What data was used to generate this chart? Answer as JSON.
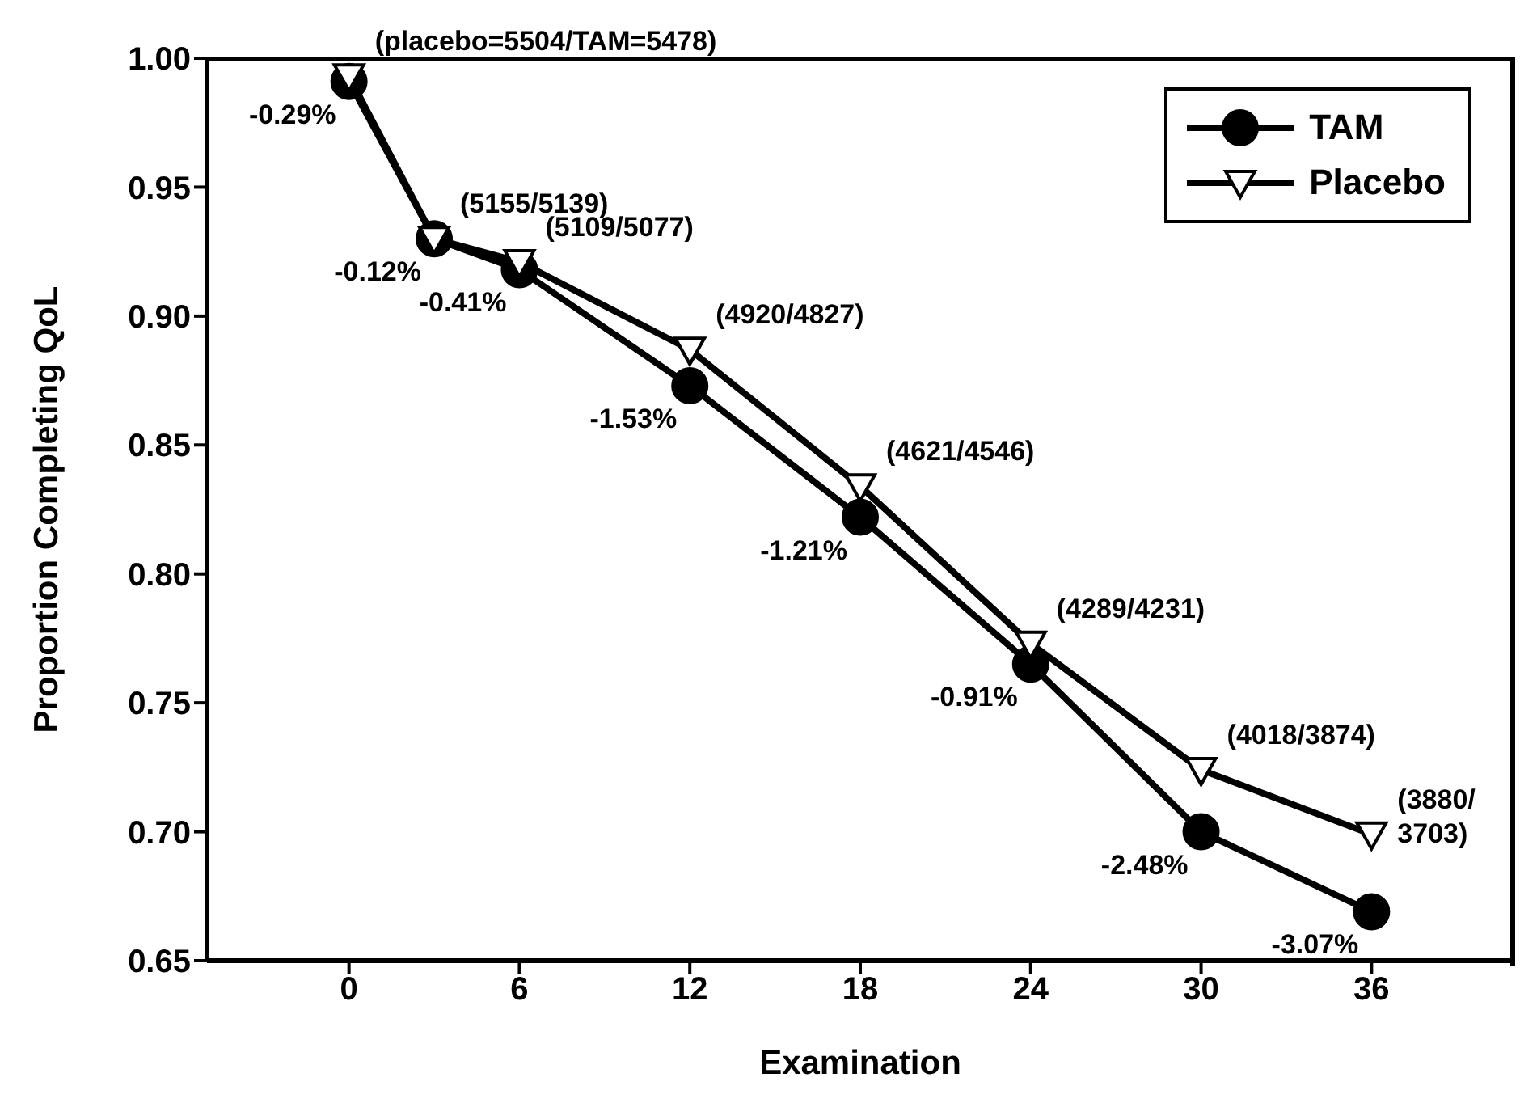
{
  "chart_data": {
    "type": "line",
    "xlabel": "Examination",
    "ylabel": "Proportion Completing QoL",
    "x": [
      0,
      3,
      6,
      12,
      18,
      24,
      30,
      36
    ],
    "series": [
      {
        "name": "TAM",
        "color": "#000000",
        "marker": "circle",
        "values": [
          0.991,
          0.93,
          0.918,
          0.873,
          0.822,
          0.765,
          0.7,
          0.669
        ]
      },
      {
        "name": "Placebo",
        "color": "#000000",
        "marker": "triangle",
        "values": [
          0.993,
          0.93,
          0.921,
          0.887,
          0.834,
          0.773,
          0.724,
          0.699
        ]
      }
    ],
    "xlim": [
      -5,
      41
    ],
    "xticks": [
      0,
      6,
      12,
      18,
      24,
      30,
      36
    ],
    "ylim": [
      0.65,
      1.0
    ],
    "yticks": [
      {
        "value": 0.65,
        "label": "0.65"
      },
      {
        "value": 0.7,
        "label": "0.70"
      },
      {
        "value": 0.75,
        "label": "0.75"
      },
      {
        "value": 0.8,
        "label": "0.80"
      },
      {
        "value": 0.85,
        "label": "0.85"
      },
      {
        "value": 0.9,
        "label": "0.90"
      },
      {
        "value": 0.95,
        "label": "0.95"
      },
      {
        "value": 1.0,
        "label": "1.00"
      }
    ],
    "grid": false,
    "legend": "top right",
    "line_style": "solid",
    "annotations": [
      {
        "text": "(placebo=5504/TAM=5478)",
        "x": 0,
        "y": 0.993
      },
      {
        "text": "(5155/5139)",
        "x": 3,
        "y": 0.93
      },
      {
        "text": "(5109/5077)",
        "x": 6,
        "y": 0.921
      },
      {
        "text": "(4920/4827)",
        "x": 12,
        "y": 0.887
      },
      {
        "text": "(4621/4546)",
        "x": 18,
        "y": 0.834
      },
      {
        "text": "(4289/4231)",
        "x": 24,
        "y": 0.773
      },
      {
        "text": "(4018/3874)",
        "x": 30,
        "y": 0.724
      },
      {
        "text": "(3880/\n3703)",
        "x": 36,
        "y": 0.699
      },
      {
        "text": "-0.29%",
        "x": 0,
        "y": 0.991
      },
      {
        "text": "-0.12%",
        "x": 3,
        "y": 0.93
      },
      {
        "text": "-0.41%",
        "x": 6,
        "y": 0.918
      },
      {
        "text": "-1.53%",
        "x": 12,
        "y": 0.873
      },
      {
        "text": "-1.21%",
        "x": 18,
        "y": 0.822
      },
      {
        "text": "-0.91%",
        "x": 24,
        "y": 0.765
      },
      {
        "text": "-2.48%",
        "x": 30,
        "y": 0.7
      },
      {
        "text": "-3.07%",
        "x": 36,
        "y": 0.669
      }
    ]
  }
}
